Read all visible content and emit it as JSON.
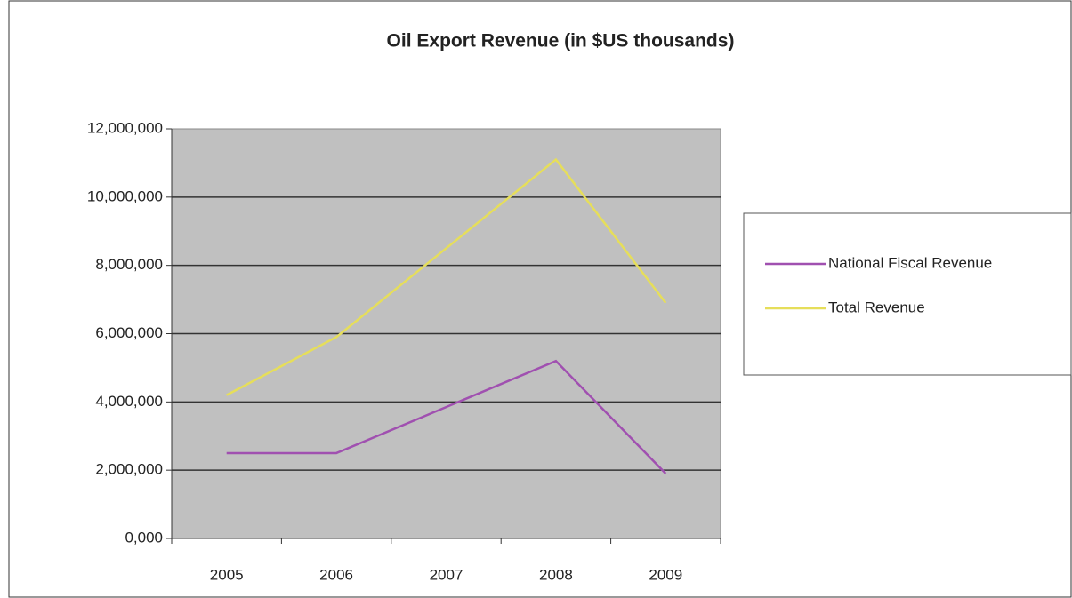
{
  "chart_data": {
    "type": "line",
    "title": "Oil Export Revenue (in $US thousands)",
    "categories": [
      "2005",
      "2006",
      "2007",
      "2008",
      "2009"
    ],
    "series": [
      {
        "name": "National Fiscal Revenue",
        "color": "#a050b0",
        "values": [
          2500000,
          2500000,
          3850000,
          5200000,
          1900000
        ]
      },
      {
        "name": "Total Revenue",
        "color": "#e6de5a",
        "values": [
          4200000,
          5900000,
          8500000,
          11100000,
          6900000
        ]
      }
    ],
    "ylim": [
      0,
      12000000
    ],
    "yticks": [
      {
        "value": 0,
        "label": "0,000"
      },
      {
        "value": 2000000,
        "label": "2,000,000"
      },
      {
        "value": 4000000,
        "label": "4,000,000"
      },
      {
        "value": 6000000,
        "label": "6,000,000"
      },
      {
        "value": 8000000,
        "label": "8,000,000"
      },
      {
        "value": 10000000,
        "label": "10,000,000"
      },
      {
        "value": 12000000,
        "label": "12,000,000"
      }
    ],
    "grid": true,
    "legend": "right"
  }
}
